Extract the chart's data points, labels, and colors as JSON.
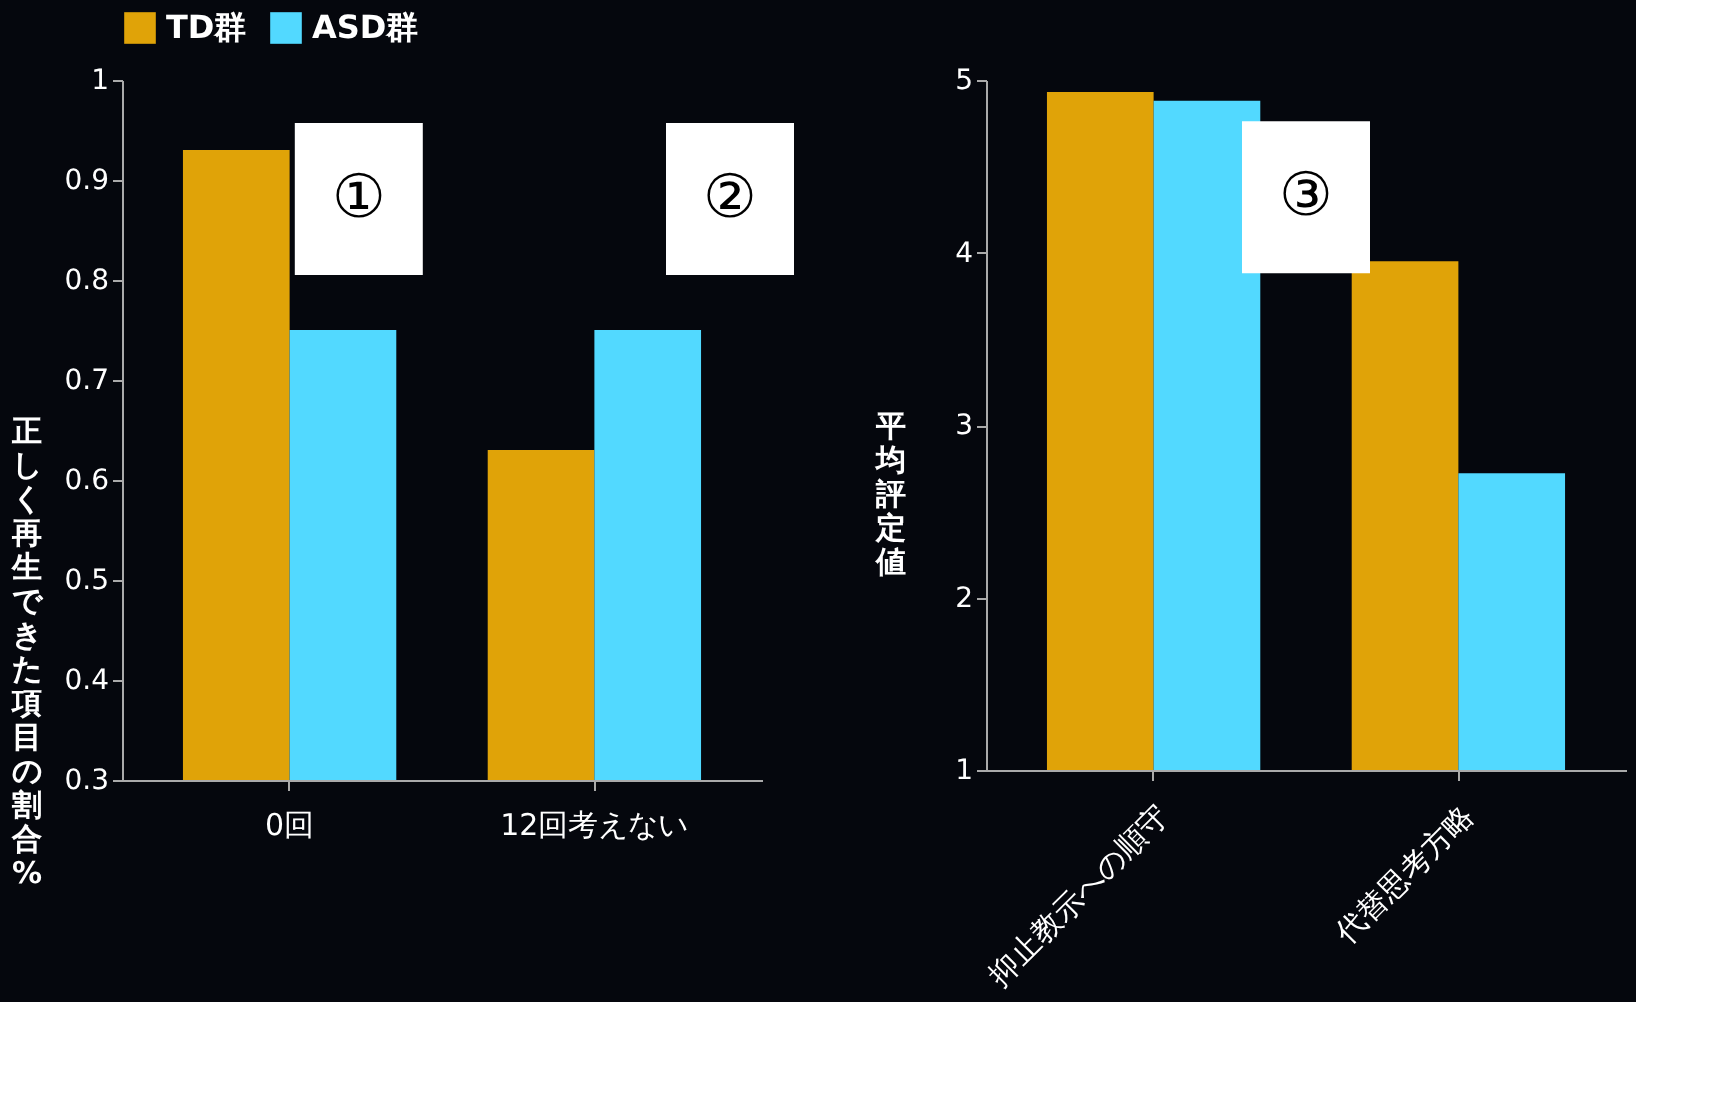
{
  "chart_data": [
    {
      "type": "bar",
      "ylabel": "正しく再生できた項目の割合%",
      "categories": [
        "0回",
        "12回考えない"
      ],
      "series": [
        {
          "name": "TD群",
          "color": "#e0a308",
          "values": [
            0.93,
            0.63
          ]
        },
        {
          "name": "ASD群",
          "color": "#52d9ff",
          "values": [
            0.75,
            0.75
          ]
        }
      ],
      "ylim": [
        0.3,
        1
      ],
      "yticks": [
        0.3,
        0.4,
        0.5,
        0.6,
        0.7,
        0.8,
        0.9,
        1
      ],
      "grid": false,
      "legend": "top",
      "annotations": [
        "①",
        "②"
      ]
    },
    {
      "type": "bar",
      "ylabel": "平均評定値",
      "categories": [
        "抑止教示への順守",
        "代替思考方略"
      ],
      "series": [
        {
          "color": "#e0a308",
          "values": [
            4.93,
            3.95
          ]
        },
        {
          "color": "#52d9ff",
          "values": [
            4.88,
            2.72
          ]
        }
      ],
      "ylim": [
        1,
        5
      ],
      "yticks": [
        1,
        2,
        3,
        4,
        5
      ],
      "grid": false,
      "legend": false,
      "annotations": [
        "③"
      ]
    }
  ]
}
